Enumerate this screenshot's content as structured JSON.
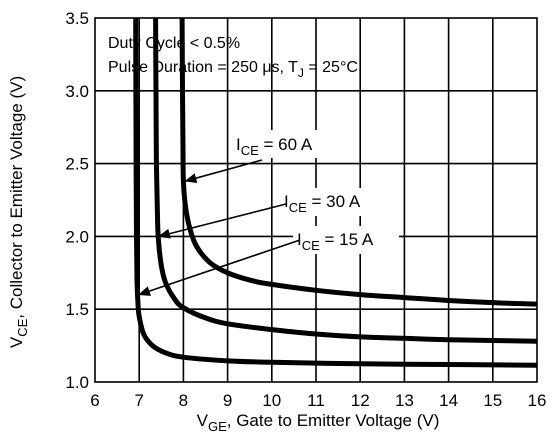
{
  "chart_data": {
    "type": "line",
    "xlabel_main": "V",
    "xlabel_sub": "GE",
    "xlabel_rest": ", Gate to Emitter Voltage (V)",
    "ylabel_main": "V",
    "ylabel_sub": "CE",
    "ylabel_rest": ", Collector to Emitter Voltage (V)",
    "xlim": [
      6,
      16
    ],
    "ylim": [
      1.0,
      3.5
    ],
    "x_ticks": [
      6,
      7,
      8,
      9,
      10,
      11,
      12,
      13,
      14,
      15,
      16
    ],
    "y_ticks": [
      "1.0",
      "1.5",
      "2.0",
      "2.5",
      "3.0",
      "3.5"
    ],
    "y_tick_values": [
      1.0,
      1.5,
      2.0,
      2.5,
      3.0,
      3.5
    ],
    "grid": true,
    "notes": {
      "line1": "Duty Cycle < 0.5%",
      "line2_a": "Pulse Duration = 250 μs, T",
      "line2_sub": "J",
      "line2_b": " = 25°C"
    },
    "series": [
      {
        "name_main": "I",
        "name_sub": "CE",
        "name_rest": " = 60 A",
        "arrow_to": [
          8.0,
          2.38
        ],
        "points": [
          [
            7.97,
            3.5
          ],
          [
            7.98,
            3.0
          ],
          [
            7.99,
            2.6
          ],
          [
            8.0,
            2.38
          ],
          [
            8.05,
            2.2
          ],
          [
            8.15,
            2.05
          ],
          [
            8.3,
            1.93
          ],
          [
            8.6,
            1.82
          ],
          [
            9.0,
            1.75
          ],
          [
            9.5,
            1.7
          ],
          [
            10.0,
            1.67
          ],
          [
            11.0,
            1.63
          ],
          [
            12.0,
            1.6
          ],
          [
            13.0,
            1.58
          ],
          [
            14.0,
            1.56
          ],
          [
            15.0,
            1.545
          ],
          [
            16.0,
            1.535
          ]
        ]
      },
      {
        "name_main": "I",
        "name_sub": "CE",
        "name_rest": " = 30 A",
        "arrow_to": [
          7.4,
          2.0
        ],
        "points": [
          [
            7.37,
            3.5
          ],
          [
            7.38,
            3.0
          ],
          [
            7.39,
            2.5
          ],
          [
            7.41,
            2.2
          ],
          [
            7.43,
            2.0
          ],
          [
            7.5,
            1.8
          ],
          [
            7.6,
            1.68
          ],
          [
            7.8,
            1.57
          ],
          [
            8.0,
            1.51
          ],
          [
            8.5,
            1.44
          ],
          [
            9.0,
            1.4
          ],
          [
            10.0,
            1.36
          ],
          [
            11.0,
            1.33
          ],
          [
            12.0,
            1.31
          ],
          [
            13.0,
            1.3
          ],
          [
            14.0,
            1.29
          ],
          [
            15.0,
            1.285
          ],
          [
            16.0,
            1.28
          ]
        ]
      },
      {
        "name_main": "I",
        "name_sub": "CE",
        "name_rest": " = 15 A",
        "arrow_to": [
          6.95,
          1.6
        ],
        "points": [
          [
            6.92,
            3.5
          ],
          [
            6.925,
            3.0
          ],
          [
            6.93,
            2.5
          ],
          [
            6.94,
            2.0
          ],
          [
            6.95,
            1.7
          ],
          [
            6.97,
            1.55
          ],
          [
            7.0,
            1.45
          ],
          [
            7.1,
            1.33
          ],
          [
            7.3,
            1.25
          ],
          [
            7.6,
            1.2
          ],
          [
            8.0,
            1.17
          ],
          [
            9.0,
            1.145
          ],
          [
            10.0,
            1.135
          ],
          [
            12.0,
            1.125
          ],
          [
            14.0,
            1.12
          ],
          [
            16.0,
            1.115
          ]
        ]
      }
    ]
  }
}
